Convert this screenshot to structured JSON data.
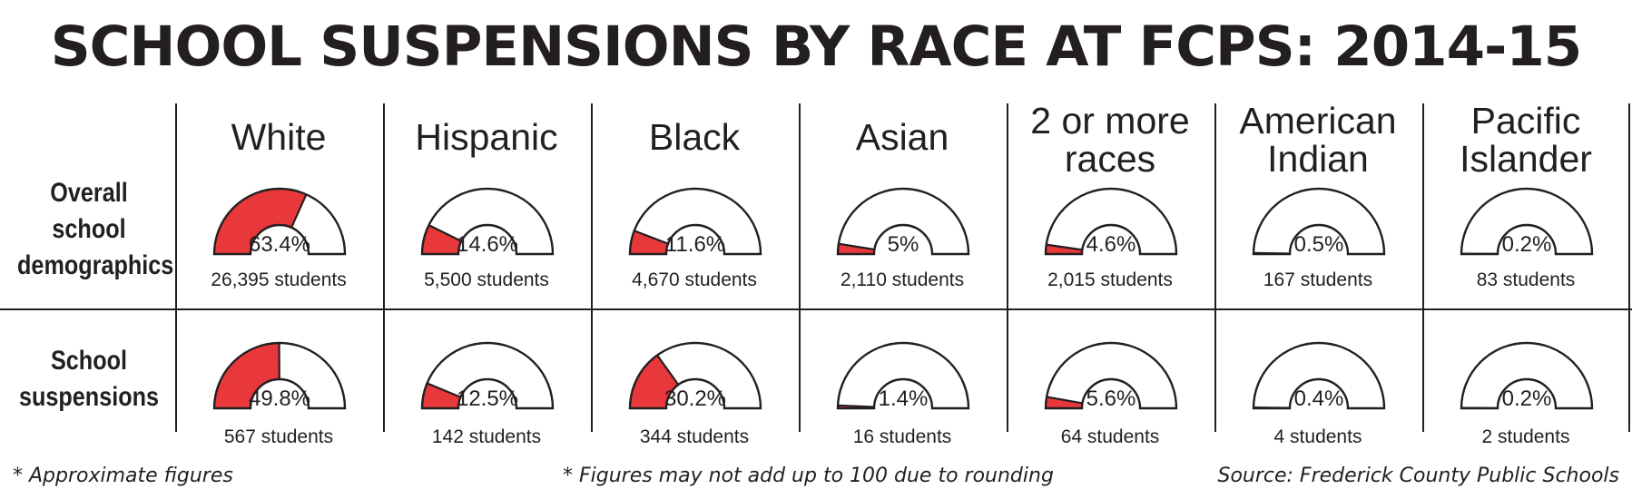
{
  "title": "SCHOOL SUSPENSIONS BY RACE AT FCPS: 2014-15",
  "row_labels": {
    "demographics": "Overall school\ndemographics",
    "suspensions": "School\nsuspensions"
  },
  "footnotes": {
    "approximate": "* Approximate figures",
    "rounding": "* Figures may not add up to 100 due to rounding",
    "source": "Source: Frederick County Public Schools"
  },
  "colors": {
    "fill": "#e8383b",
    "stroke": "#231f20",
    "empty": "#ffffff"
  },
  "chart_data": {
    "type": "gauge",
    "title": "SCHOOL SUSPENSIONS BY RACE AT FCPS: 2014-15",
    "categories": [
      "White",
      "Hispanic",
      "Black",
      "Asian",
      "2 or more\nraces",
      "American\nIndian",
      "Pacific\nIslander"
    ],
    "series": [
      {
        "name": "Overall school demographics",
        "values": [
          63.4,
          14.6,
          11.6,
          5,
          4.6,
          0.5,
          0.2
        ],
        "labels": [
          "63.4%",
          "14.6%",
          "11.6%",
          "5%",
          "4.6%",
          "0.5%",
          "0.2%"
        ],
        "counts": [
          "26,395 students",
          "5,500 students",
          "4,670 students",
          "2,110 students",
          "2,015 students",
          "167 students",
          "83 students"
        ]
      },
      {
        "name": "School suspensions",
        "values": [
          49.8,
          12.5,
          30.2,
          1.4,
          5.6,
          0.4,
          0.2
        ],
        "labels": [
          "49.8%",
          "12.5%",
          "30.2%",
          "1.4%",
          "5.6%",
          "0.4%",
          "0.2%"
        ],
        "counts": [
          "567 students",
          "142 students",
          "344 students",
          "16 students",
          "64 students",
          "4 students",
          "2 students"
        ]
      }
    ],
    "ylim": [
      0,
      100
    ]
  }
}
